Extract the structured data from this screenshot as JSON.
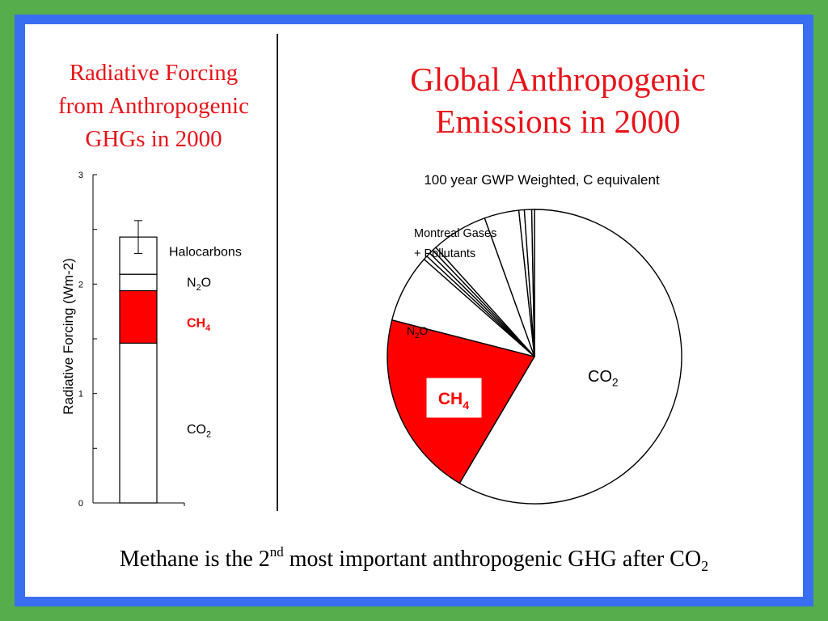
{
  "slide": {
    "left_title_lines": [
      "Radiative Forcing",
      "from Anthropogenic",
      "GHGs in 2000"
    ],
    "right_title_lines": [
      "Global Anthropogenic",
      "Emissions in 2000"
    ],
    "caption": {
      "text_before": "Methane is the 2",
      "superscript": "nd",
      "text_middle": " most important anthropogenic GHG after CO",
      "subscript": "2"
    }
  },
  "colors": {
    "background_green": "#56ad4c",
    "frame_blue": "#3a6ef0",
    "title_red": "#e8141a",
    "ch4_red": "#ff0000"
  },
  "chart_data": [
    {
      "type": "bar",
      "stacked": true,
      "ylabel": "Radiative Forcing (Wm-2)",
      "ylim": [
        0,
        3
      ],
      "yticks": [
        "0",
        "1",
        "2",
        "3"
      ],
      "segments": [
        {
          "name": "CO",
          "sub": "2",
          "value": 1.46,
          "color": "#ffffff"
        },
        {
          "name": "CH",
          "sub": "4",
          "value": 0.48,
          "color": "#ff0000",
          "label_color": "#ff0000"
        },
        {
          "name": "N",
          "sub": "2",
          "suffix": "O",
          "value": 0.15,
          "color": "#ffffff"
        },
        {
          "name": "Halocarbons",
          "value": 0.34,
          "color": "#ffffff"
        }
      ],
      "error_bar": {
        "low": 2.28,
        "high": 2.58
      }
    },
    {
      "type": "pie",
      "title": "100 year GWP Weighted, C equivalent",
      "slices": [
        {
          "name": "CO",
          "sub": "2",
          "value": 58.5,
          "color": "#ffffff"
        },
        {
          "name": "CH",
          "sub": "4",
          "value": 20.5,
          "color": "#ff0000"
        },
        {
          "name": "N",
          "sub": "2",
          "suffix": "O",
          "value": 7.5,
          "color": "#ffffff"
        },
        {
          "name": "",
          "value": 0.45,
          "color": "#ffffff"
        },
        {
          "name": "",
          "value": 0.45,
          "color": "#ffffff"
        },
        {
          "name": "",
          "value": 0.45,
          "color": "#ffffff"
        },
        {
          "name": "",
          "value": 0.45,
          "color": "#ffffff"
        },
        {
          "name": "",
          "value": 6.2,
          "color": "#ffffff"
        },
        {
          "name": "",
          "value": 3.8,
          "color": "#ffffff"
        },
        {
          "name": "",
          "value": 0.6,
          "color": "#ffffff"
        },
        {
          "name": "",
          "value": 0.8,
          "color": "#ffffff"
        },
        {
          "name": "",
          "value": 0.3,
          "color": "#ffffff"
        }
      ],
      "annotation": [
        "Montreal Gases",
        "+ Pollutants"
      ]
    }
  ]
}
